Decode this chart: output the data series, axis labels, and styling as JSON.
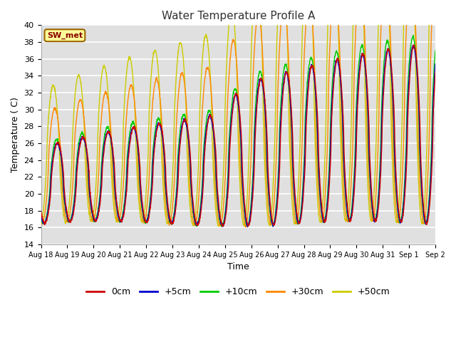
{
  "title": "Water Temperature Profile A",
  "xlabel": "Time",
  "ylabel": "Temperature ( C)",
  "ylim": [
    14,
    40
  ],
  "yticks": [
    14,
    16,
    18,
    20,
    22,
    24,
    26,
    28,
    30,
    32,
    34,
    36,
    38,
    40
  ],
  "xtick_labels": [
    "Aug 18",
    "Aug 19",
    "Aug 20",
    "Aug 21",
    "Aug 22",
    "Aug 23",
    "Aug 24",
    "Aug 25",
    "Aug 26",
    "Aug 27",
    "Aug 28",
    "Aug 29",
    "Aug 30",
    "Aug 31",
    "Sep 1",
    "Sep 2"
  ],
  "series_labels": [
    "0cm",
    "+5cm",
    "+10cm",
    "+30cm",
    "+50cm"
  ],
  "series_colors": [
    "#cc0000",
    "#0000cc",
    "#00cc00",
    "#ff8800",
    "#cccc00"
  ],
  "legend_box_color": "#ffff99",
  "legend_box_edge": "#996600",
  "annotation_text": "SW_met",
  "annotation_color": "#880000",
  "background_color": "#e0e0e0",
  "grid_color": "#ffffff",
  "n_days": 15.5,
  "samples_per_day": 144
}
